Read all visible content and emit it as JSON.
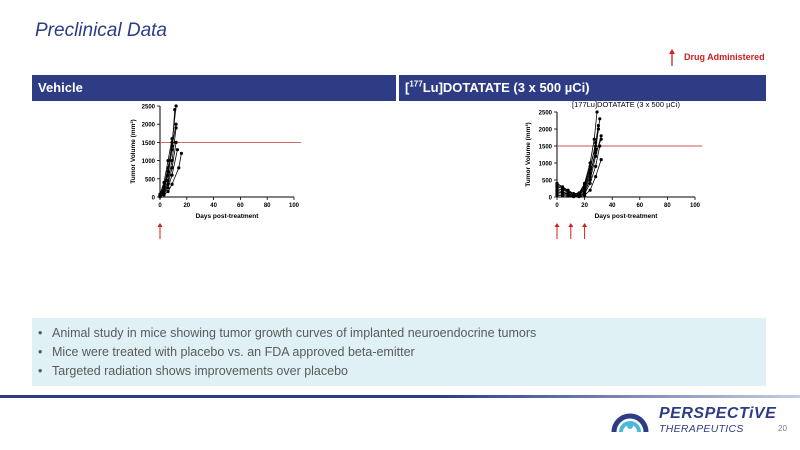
{
  "slide": {
    "title": "Preclinical Data",
    "page_number": "20",
    "legend_label": "Drug Administered"
  },
  "panels": {
    "left_header": "Vehicle",
    "right_header_pre": "[",
    "right_header_sup": "177",
    "right_header_post": "Lu]DOTATATE (3 x 500 µCi)"
  },
  "bullets": [
    "Animal study in mice showing tumor growth curves of implanted neuroendocrine tumors",
    "Mice were treated with placebo vs. an FDA approved beta-emitter",
    "Targeted radiation shows improvements over placebo"
  ],
  "logo": {
    "name": "PERSPECTiVE",
    "subtitle": "THERAPEUTICS"
  },
  "colors": {
    "brand_navy": "#2e3c86",
    "accent_red": "#cc1f1f",
    "bullet_bg": "#dff1f5"
  },
  "chart_data": [
    {
      "type": "line",
      "title": "",
      "xlabel": "Days post-treatment",
      "ylabel": "Tumor Volume (mm³)",
      "xlim": [
        0,
        100
      ],
      "ylim": [
        0,
        2500
      ],
      "xticks": [
        0,
        20,
        40,
        60,
        80,
        100
      ],
      "yticks": [
        0,
        500,
        1000,
        1500,
        2000,
        2500
      ],
      "threshold": 1500,
      "dosing_days": [
        0
      ],
      "series": [
        {
          "x": [
            0,
            3,
            6,
            9,
            12
          ],
          "values": [
            60,
            250,
            700,
            1500,
            2500
          ]
        },
        {
          "x": [
            0,
            3,
            6,
            9,
            11
          ],
          "values": [
            40,
            200,
            600,
            1300,
            2400
          ]
        },
        {
          "x": [
            0,
            3,
            6,
            9,
            12
          ],
          "values": [
            30,
            150,
            450,
            1000,
            1900
          ]
        },
        {
          "x": [
            0,
            3,
            6,
            9,
            12
          ],
          "values": [
            50,
            300,
            800,
            1400,
            2000
          ]
        },
        {
          "x": [
            0,
            3,
            6,
            9,
            12
          ],
          "values": [
            20,
            120,
            350,
            800,
            1500
          ]
        },
        {
          "x": [
            0,
            3,
            6,
            9,
            13
          ],
          "values": [
            10,
            100,
            250,
            600,
            1300
          ]
        },
        {
          "x": [
            0,
            3,
            6,
            9,
            14,
            16
          ],
          "values": [
            5,
            60,
            150,
            350,
            800,
            1200
          ]
        },
        {
          "x": [
            0,
            3,
            6,
            9
          ],
          "values": [
            80,
            400,
            1000,
            1600
          ]
        }
      ]
    },
    {
      "type": "line",
      "title": "[177Lu]DOTATATE (3 x 500 µCi)",
      "xlabel": "Days post-treatment",
      "ylabel": "Tumor Volume (mm³)",
      "xlim": [
        0,
        100
      ],
      "ylim": [
        0,
        2500
      ],
      "xticks": [
        0,
        20,
        40,
        60,
        80,
        100
      ],
      "yticks": [
        0,
        500,
        1000,
        1500,
        2000,
        2500
      ],
      "threshold": 1500,
      "dosing_days": [
        0,
        10,
        20
      ],
      "series": [
        {
          "x": [
            0,
            4,
            8,
            12,
            16,
            20,
            24,
            28,
            31
          ],
          "values": [
            300,
            250,
            150,
            80,
            60,
            200,
            600,
            1400,
            2300
          ]
        },
        {
          "x": [
            0,
            4,
            8,
            12,
            16,
            20,
            24,
            28,
            30
          ],
          "values": [
            200,
            150,
            100,
            50,
            80,
            300,
            800,
            1600,
            2100
          ]
        },
        {
          "x": [
            0,
            4,
            8,
            12,
            16,
            20,
            24,
            27,
            29
          ],
          "values": [
            400,
            300,
            200,
            100,
            120,
            400,
            1000,
            1700,
            2500
          ]
        },
        {
          "x": [
            0,
            4,
            8,
            12,
            16,
            20,
            24,
            28,
            32
          ],
          "values": [
            150,
            120,
            90,
            40,
            30,
            150,
            500,
            1200,
            1800
          ]
        },
        {
          "x": [
            0,
            4,
            8,
            12,
            16,
            20,
            24,
            28,
            32
          ],
          "values": [
            250,
            200,
            150,
            60,
            50,
            250,
            700,
            1300,
            1700
          ]
        },
        {
          "x": [
            0,
            4,
            8,
            12,
            16,
            20,
            24,
            28,
            31
          ],
          "values": [
            100,
            80,
            60,
            20,
            20,
            100,
            400,
            900,
            1500
          ]
        },
        {
          "x": [
            0,
            4,
            8,
            12,
            16,
            20,
            24,
            28,
            30
          ],
          "values": [
            350,
            280,
            180,
            90,
            100,
            350,
            900,
            1500,
            2000
          ]
        },
        {
          "x": [
            0,
            4,
            8,
            12,
            16,
            20,
            24,
            28,
            32
          ],
          "values": [
            50,
            40,
            30,
            10,
            10,
            50,
            200,
            600,
            1100
          ]
        }
      ]
    }
  ]
}
